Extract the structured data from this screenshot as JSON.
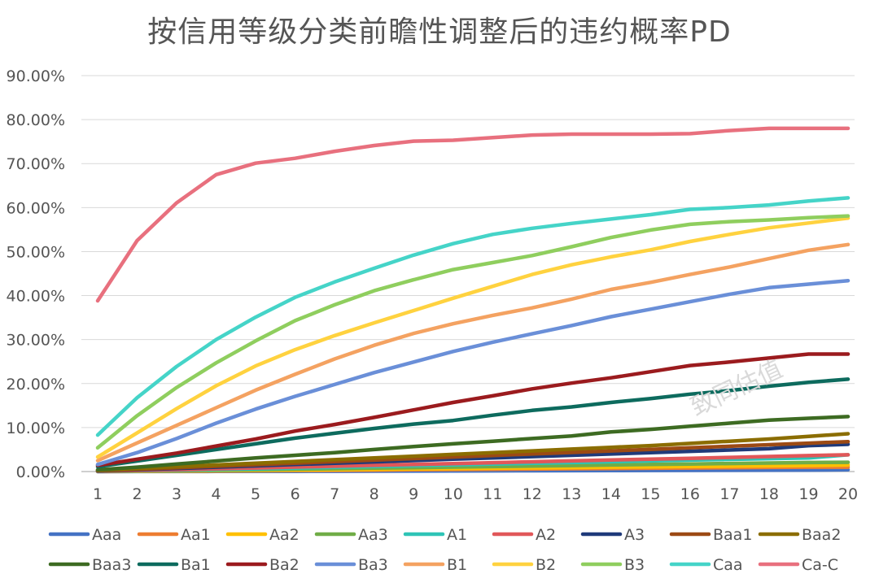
{
  "watermark": "致同估值",
  "chart_data": {
    "type": "line",
    "title": "按信用等级分类前瞻性调整后的违约概率PD",
    "xlabel": "",
    "ylabel": "",
    "x": [
      1,
      2,
      3,
      4,
      5,
      6,
      7,
      8,
      9,
      10,
      11,
      12,
      13,
      14,
      15,
      16,
      17,
      18,
      19,
      20
    ],
    "ylim": [
      0,
      90
    ],
    "yticks": [
      "0.00%",
      "10.00%",
      "20.00%",
      "30.00%",
      "40.00%",
      "50.00%",
      "60.00%",
      "70.00%",
      "80.00%",
      "90.00%"
    ],
    "grid": true,
    "legend_position": "bottom",
    "series": [
      {
        "name": "Aaa",
        "color": "#4472c4",
        "values": [
          0.0,
          0.01,
          0.02,
          0.03,
          0.05,
          0.06,
          0.08,
          0.1,
          0.12,
          0.14,
          0.16,
          0.18,
          0.2,
          0.22,
          0.25,
          0.27,
          0.3,
          0.33,
          0.36,
          0.4
        ]
      },
      {
        "name": "Aa1",
        "color": "#ed7d31",
        "values": [
          0.02,
          0.05,
          0.09,
          0.13,
          0.18,
          0.23,
          0.28,
          0.34,
          0.4,
          0.46,
          0.52,
          0.58,
          0.64,
          0.7,
          0.76,
          0.82,
          0.88,
          0.94,
          1.0,
          1.0
        ]
      },
      {
        "name": "Aa2",
        "color": "#ffc000",
        "values": [
          0.03,
          0.08,
          0.14,
          0.21,
          0.28,
          0.35,
          0.43,
          0.51,
          0.59,
          0.67,
          0.75,
          0.83,
          0.91,
          0.99,
          1.07,
          1.15,
          1.22,
          1.3,
          1.38,
          1.5
        ]
      },
      {
        "name": "Aa3",
        "color": "#70ad47",
        "values": [
          0.05,
          0.12,
          0.21,
          0.31,
          0.42,
          0.53,
          0.65,
          0.77,
          0.89,
          1.01,
          1.13,
          1.25,
          1.37,
          1.49,
          1.61,
          1.72,
          1.83,
          1.94,
          2.05,
          2.1
        ]
      },
      {
        "name": "A1",
        "color": "#2ec4b6",
        "values": [
          0.07,
          0.18,
          0.32,
          0.47,
          0.63,
          0.8,
          0.98,
          1.16,
          1.34,
          1.52,
          1.7,
          1.88,
          2.06,
          2.24,
          2.42,
          2.6,
          2.77,
          2.94,
          3.1,
          3.8
        ]
      },
      {
        "name": "A2",
        "color": "#e15759",
        "values": [
          0.1,
          0.25,
          0.43,
          0.62,
          0.82,
          1.02,
          1.22,
          1.42,
          1.62,
          1.82,
          2.02,
          2.22,
          2.42,
          2.62,
          2.82,
          3.02,
          3.22,
          3.42,
          3.62,
          3.8
        ]
      },
      {
        "name": "A3",
        "color": "#1f3a7a",
        "values": [
          0.15,
          0.4,
          0.7,
          1.0,
          1.3,
          1.6,
          1.9,
          2.2,
          2.5,
          2.8,
          3.1,
          3.4,
          3.7,
          4.0,
          4.3,
          4.6,
          4.9,
          5.2,
          5.9,
          6.2
        ]
      },
      {
        "name": "Baa1",
        "color": "#9c4a14",
        "values": [
          0.2,
          0.5,
          0.85,
          1.2,
          1.55,
          1.9,
          2.25,
          2.6,
          2.95,
          3.3,
          3.65,
          4.0,
          4.35,
          4.7,
          5.05,
          5.4,
          5.75,
          6.1,
          6.45,
          6.8
        ]
      },
      {
        "name": "Baa2",
        "color": "#8b6d00",
        "values": [
          0.3,
          0.7,
          1.1,
          1.5,
          1.9,
          2.3,
          2.7,
          3.1,
          3.5,
          3.9,
          4.3,
          4.7,
          5.1,
          5.5,
          5.9,
          6.4,
          6.9,
          7.4,
          8.0,
          8.6
        ]
      },
      {
        "name": "Baa3",
        "color": "#3d6b22",
        "values": [
          0.4,
          1.0,
          1.7,
          2.4,
          3.1,
          3.7,
          4.3,
          5.0,
          5.7,
          6.3,
          6.9,
          7.5,
          8.1,
          9.0,
          9.6,
          10.3,
          11.0,
          11.7,
          12.1,
          12.5
        ]
      },
      {
        "name": "Ba1",
        "color": "#0d6b5e",
        "values": [
          1.1,
          2.4,
          3.7,
          5.0,
          6.3,
          7.6,
          8.7,
          9.8,
          10.8,
          11.6,
          12.8,
          13.9,
          14.7,
          15.7,
          16.6,
          17.6,
          18.4,
          19.4,
          20.3,
          21.0
        ]
      },
      {
        "name": "Ba2",
        "color": "#9b1b1e",
        "values": [
          1.4,
          2.8,
          4.2,
          5.8,
          7.4,
          9.2,
          10.7,
          12.3,
          14.0,
          15.7,
          17.2,
          18.8,
          20.1,
          21.3,
          22.7,
          24.1,
          24.9,
          25.8,
          26.7,
          26.7
        ]
      },
      {
        "name": "Ba3",
        "color": "#6a8fd8",
        "values": [
          1.6,
          4.3,
          7.5,
          11.0,
          14.2,
          17.1,
          19.8,
          22.5,
          24.9,
          27.3,
          29.4,
          31.3,
          33.2,
          35.2,
          36.9,
          38.6,
          40.3,
          41.8,
          42.6,
          43.4
        ]
      },
      {
        "name": "B1",
        "color": "#f4a261",
        "values": [
          2.5,
          6.5,
          10.5,
          14.5,
          18.5,
          22.1,
          25.6,
          28.7,
          31.4,
          33.6,
          35.5,
          37.2,
          39.2,
          41.4,
          43.0,
          44.8,
          46.5,
          48.4,
          50.3,
          51.6
        ]
      },
      {
        "name": "B2",
        "color": "#ffd23f",
        "values": [
          3.3,
          8.8,
          14.3,
          19.5,
          24.0,
          27.7,
          30.9,
          33.8,
          36.6,
          39.4,
          42.1,
          44.8,
          47.0,
          48.8,
          50.4,
          52.3,
          53.9,
          55.4,
          56.5,
          57.6
        ]
      },
      {
        "name": "B3",
        "color": "#8fce5e",
        "values": [
          5.4,
          12.7,
          19.1,
          24.7,
          29.7,
          34.3,
          37.9,
          41.1,
          43.6,
          45.9,
          47.5,
          49.1,
          51.1,
          53.2,
          54.9,
          56.2,
          56.8,
          57.2,
          57.7,
          58.1
        ]
      },
      {
        "name": "Caa",
        "color": "#45d4c8",
        "values": [
          8.3,
          16.8,
          23.9,
          30.0,
          35.1,
          39.6,
          43.1,
          46.2,
          49.2,
          51.8,
          53.9,
          55.3,
          56.4,
          57.4,
          58.4,
          59.6,
          60.0,
          60.6,
          61.5,
          62.2
        ]
      },
      {
        "name": "Ca-C",
        "color": "#e8707e",
        "values": [
          38.8,
          52.5,
          61.1,
          67.5,
          70.1,
          71.2,
          72.8,
          74.1,
          75.1,
          75.3,
          75.9,
          76.5,
          76.7,
          76.7,
          76.7,
          76.8,
          77.5,
          78.0,
          78.0,
          78.0
        ]
      }
    ]
  }
}
